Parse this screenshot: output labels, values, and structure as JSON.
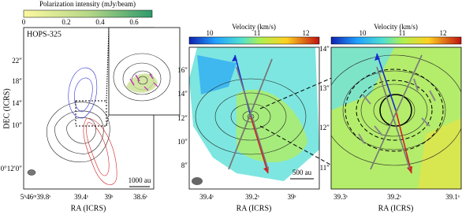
{
  "panels": [
    {
      "colorbar": {
        "label": "Polarization intensity (mJy/beam)",
        "ticks": [
          "0",
          "0.2",
          "0.4",
          "0.6"
        ]
      },
      "source": "HOPS-325",
      "y_label": "DEC (ICRS)",
      "x_label": "RA (ICRS)",
      "y_ticks": [
        "22″",
        "18″",
        "14″",
        "10″",
        "0°12′0″"
      ],
      "x_ticks": [
        "5ʰ46ᵐ39.8ˢ",
        "39.4ˢ",
        "39ˢ",
        "38.6ˢ"
      ],
      "scale_bar": "1000 au"
    },
    {
      "colorbar": {
        "label": "Velocity (km/s)",
        "ticks": [
          "10",
          "11",
          "12"
        ]
      },
      "x_label": "RA (ICRS)",
      "y_ticks": [
        "16″",
        "14″",
        "12″",
        "10″",
        "8″"
      ],
      "x_ticks": [
        "39.4ˢ",
        "39.2ˢ",
        "39ˢ"
      ],
      "scale_bar": "500 au"
    },
    {
      "colorbar": {
        "label": "Velocity (km/s)",
        "ticks": [
          "10",
          "11",
          "12"
        ]
      },
      "x_label": "RA (ICRS)",
      "y_ticks": [
        "14″",
        "13″",
        "12″",
        "11″"
      ],
      "x_ticks": [
        "39.3ˢ",
        "39.2ˢ",
        "39.1ˢ"
      ]
    }
  ]
}
